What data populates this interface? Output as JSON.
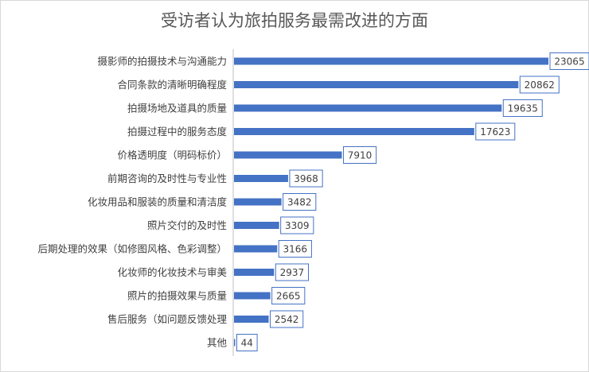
{
  "chart_data": {
    "type": "bar",
    "orientation": "horizontal",
    "title": "受访者认为旅拍服务最需改进的方面",
    "xlabel": "",
    "ylabel": "",
    "categories": [
      "摄影师的拍摄技术与沟通能力",
      "合同条款的清晰明确程度",
      "拍摄场地及道具的质量",
      "拍摄过程中的服务态度",
      "价格透明度（明码标价）",
      "前期咨询的及时性与专业性",
      "化妆用品和服装的质量和清洁度",
      "照片交付的及时性",
      "后期处理的效果（如修图风格、色彩调整）",
      "化妆师的化妆技术与审美",
      "照片的拍摄效果与质量",
      "售后服务（如问题反馈处理",
      "其他"
    ],
    "values": [
      23065,
      20862,
      19635,
      17623,
      7910,
      3968,
      3482,
      3309,
      3166,
      2937,
      2665,
      2542,
      44
    ],
    "xlim": [
      0,
      23065
    ],
    "grid": false,
    "legend": "none",
    "data_labels": true,
    "colors": {
      "bar": "#4472c4",
      "label_border": "#4472c4",
      "axis": "#bfbfbf"
    }
  }
}
